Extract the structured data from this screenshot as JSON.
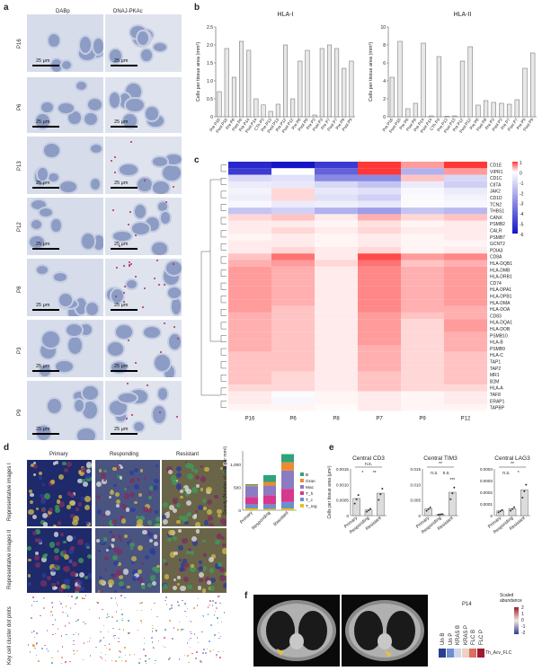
{
  "panels": {
    "a": {
      "letter": "a",
      "col_titles": [
        "DABp",
        "DNAJ-PKAc"
      ],
      "rows": [
        "P16",
        "P6",
        "P13",
        "P12",
        "P8",
        "P3",
        "P9"
      ],
      "scale_label": "25 μm"
    },
    "b": {
      "letter": "b",
      "ylabel": "Cells per tissue area (mm²)",
      "charts": [
        {
          "type": "bar",
          "title": "HLA-I",
          "ylim": [
            0,
            2.5
          ],
          "yticks": [
            "0",
            "0.5",
            "1.0",
            "1.5",
            "2.0",
            "2.5"
          ],
          "categories": [
            "Pre P16",
            "Post P16",
            "Pre P6",
            "Post P6",
            "Pre P14",
            "Post P14",
            "CTh P3",
            "Pre P13",
            "Post P13",
            "Pre P12",
            "Post P12",
            "Pre P8",
            "Post P8",
            "Pre P3",
            "Post P3",
            "Pre P7",
            "Post P7",
            "Pre P9",
            "Post P9"
          ],
          "values": [
            0.7,
            1.9,
            1.1,
            2.1,
            1.85,
            0.5,
            0.33,
            0.15,
            0.35,
            2.0,
            0.5,
            1.55,
            1.85,
            0.05,
            1.9,
            2.0,
            1.9,
            1.35,
            1.55
          ]
        },
        {
          "type": "bar",
          "title": "HLA-II",
          "ylim": [
            0,
            10
          ],
          "yticks": [
            "0",
            "2",
            "4",
            "6",
            "8",
            "10"
          ],
          "categories": [
            "Pre P16",
            "Post P16",
            "Pre P6",
            "Post P6",
            "Pre P14",
            "Post P14",
            "CTh P3",
            "Pre P13",
            "Post P13",
            "Pre P12",
            "Post P12",
            "Pre P8",
            "Post P8",
            "Pre P3",
            "Post P3",
            "Pre P7",
            "Post P7",
            "Pre P9",
            "Post P9"
          ],
          "values": [
            4.4,
            8.4,
            0.9,
            1.5,
            8.2,
            0.1,
            6.7,
            0.05,
            0.1,
            6.2,
            7.8,
            1.3,
            1.8,
            1.6,
            1.5,
            1.4,
            1.9,
            5.4,
            7.1
          ]
        }
      ]
    },
    "c": {
      "letter": "c",
      "genes": [
        "CD1E",
        "VIPR1",
        "CD1C",
        "CIITA",
        "JAK2",
        "CD1D",
        "TCN2",
        "THBS1",
        "CANX",
        "PSMB2",
        "CALR",
        "PSMB7",
        "GCNT2",
        "PDIA3",
        "CD8A",
        "HLA-DQB1",
        "HLA-DMB",
        "HLA-DRB1",
        "CD74",
        "HLA-DPA1",
        "HLA-DPB1",
        "HLA-DMA",
        "HLA-DOA",
        "CD83",
        "HLA-DQA1",
        "HLA-DOB",
        "PSMB10",
        "HLA-B",
        "PSMB9",
        "HLA-C",
        "TAP1",
        "TAP2",
        "MR1",
        "B2M",
        "HLA-A",
        "TAF8",
        "ERAP1",
        "TAPBP"
      ],
      "samples": [
        "P16",
        "P6",
        "P8",
        "P7",
        "P9",
        "P12"
      ],
      "colorbar_ticks": [
        "1",
        "0",
        "-1",
        "-2",
        "-3",
        "-4",
        "-5",
        "-6"
      ],
      "values": [
        [
          -5.5,
          -6,
          -5,
          1,
          0.5,
          1
        ],
        [
          -5,
          0,
          -4,
          1,
          -2,
          0.5
        ],
        [
          -1,
          -0.8,
          -3,
          -3,
          0.3,
          -1
        ],
        [
          -0.5,
          -0.6,
          -1,
          -1.5,
          -0.5,
          -1.2
        ],
        [
          -0.3,
          0.2,
          -0.6,
          -0.8,
          -0.2,
          -0.5
        ],
        [
          -0.4,
          0.2,
          -0.8,
          -1.2,
          -0.1,
          -0.3
        ],
        [
          -0.2,
          -0.5,
          -0.4,
          -0.6,
          -0.1,
          -0.2
        ],
        [
          -1.5,
          -1.2,
          -2,
          -2.5,
          -1.5,
          -1.8
        ],
        [
          0.2,
          0.3,
          0.1,
          0.4,
          0.2,
          0.3
        ],
        [
          0.1,
          0.1,
          0.05,
          0.15,
          0.05,
          0.1
        ],
        [
          0.1,
          0.2,
          0.1,
          0.2,
          0.1,
          0.1
        ],
        [
          0.05,
          0.1,
          0.05,
          0.1,
          0.05,
          0.1
        ],
        [
          0.1,
          0.1,
          0.05,
          0.1,
          0.05,
          0.05
        ],
        [
          0.1,
          0.2,
          0.1,
          0.2,
          0.05,
          0.1
        ],
        [
          0.3,
          0.7,
          0.1,
          0.9,
          0.5,
          0.6
        ],
        [
          0.4,
          0.5,
          0.2,
          0.7,
          0.3,
          0.4
        ],
        [
          0.5,
          0.4,
          0.1,
          0.6,
          0.4,
          0.5
        ],
        [
          0.5,
          0.4,
          0.1,
          0.6,
          0.4,
          0.5
        ],
        [
          0.5,
          0.4,
          0.1,
          0.6,
          0.4,
          0.5
        ],
        [
          0.5,
          0.4,
          0.1,
          0.6,
          0.4,
          0.5
        ],
        [
          0.5,
          0.4,
          0.1,
          0.6,
          0.4,
          0.5
        ],
        [
          0.5,
          0.4,
          0.1,
          0.6,
          0.4,
          0.5
        ],
        [
          0.5,
          0.3,
          0.1,
          0.6,
          0.4,
          0.4
        ],
        [
          0.4,
          0.3,
          0.1,
          0.5,
          0.3,
          0.4
        ],
        [
          0.4,
          0.3,
          0.1,
          0.5,
          0.2,
          0.5
        ],
        [
          0.4,
          0.3,
          0.1,
          0.5,
          0.2,
          0.5
        ],
        [
          0.4,
          0.3,
          0.1,
          0.5,
          0.2,
          0.4
        ],
        [
          0.4,
          0.3,
          0.1,
          0.5,
          0.2,
          0.4
        ],
        [
          0.4,
          0.3,
          0.1,
          0.4,
          0.2,
          0.4
        ],
        [
          0.3,
          0.3,
          0.1,
          0.4,
          0.2,
          0.3
        ],
        [
          0.3,
          0.3,
          0.1,
          0.4,
          0.2,
          0.3
        ],
        [
          0.3,
          0.3,
          0.1,
          0.4,
          0.2,
          0.3
        ],
        [
          0.3,
          0.2,
          0.1,
          0.3,
          0.2,
          0.3
        ],
        [
          0.3,
          0.2,
          0.1,
          0.3,
          0.2,
          0.3
        ],
        [
          0.2,
          0.2,
          0.1,
          0.3,
          0.2,
          0.2
        ],
        [
          0.1,
          -0.1,
          0.05,
          0.1,
          0.05,
          0.1
        ],
        [
          0.1,
          -0.2,
          0.05,
          0.1,
          0.05,
          0.1
        ],
        [
          0.05,
          0.05,
          0.02,
          0.1,
          0.05,
          0.05
        ]
      ]
    },
    "d": {
      "letter": "d",
      "col_titles": [
        "Primary",
        "Responding",
        "Resistant"
      ],
      "row_labels": [
        "Representative images I",
        "Representative images II",
        "Key cell cluster dot plots"
      ],
      "stacked": {
        "type": "bar",
        "ylabel": "Density (Number of cells per mm²)",
        "yticks": [
          "0",
          "500",
          "1,000"
        ],
        "ylim": [
          0,
          1300
        ],
        "categories": [
          "Primary",
          "Responding",
          "Resistant"
        ],
        "series": [
          {
            "name": "T_reg",
            "color": "#e5c11a",
            "values": [
              40,
              30,
              40
            ]
          },
          {
            "name": "T_c",
            "color": "#6a8fd0",
            "values": [
              90,
              100,
              140
            ]
          },
          {
            "name": "T_h",
            "color": "#d6388e",
            "values": [
              160,
              200,
              290
            ]
          },
          {
            "name": "Mac",
            "color": "#8a7bc2",
            "values": [
              240,
              210,
              400
            ]
          },
          {
            "name": "Gran",
            "color": "#ef8a2e",
            "values": [
              20,
              80,
              180
            ]
          },
          {
            "name": "B",
            "color": "#2fa37a",
            "values": [
              20,
              150,
              180
            ]
          }
        ],
        "legend": [
          "B",
          "Gran",
          "Mac",
          "T_h",
          "T_c",
          "T_reg"
        ]
      }
    },
    "e": {
      "letter": "e",
      "ylabel": "Cells per tissue area (μm²)",
      "categories": [
        "Primary",
        "Responding",
        "Resistant"
      ],
      "charts": [
        {
          "type": "bar",
          "title": "Central CD3",
          "yticks": [
            "0",
            "0.0005",
            "0.0010",
            "0.0015"
          ],
          "ylim": [
            0,
            0.0015
          ],
          "values": [
            0.00055,
            0.00018,
            0.00072
          ],
          "sig": [
            "n.s.",
            "*",
            "**"
          ]
        },
        {
          "type": "bar",
          "title": "Central TIM3",
          "yticks": [
            "0",
            "0.005",
            "0.010",
            "0.015"
          ],
          "ylim": [
            0,
            0.015
          ],
          "values": [
            0.0022,
            0.0004,
            0.0075
          ],
          "sig": [
            "**",
            "n.s.",
            "n.s.",
            "***"
          ]
        },
        {
          "type": "bar",
          "title": "Central LAG3",
          "yticks": [
            "0",
            "0.0001",
            "0.0002",
            "0.0003",
            "0.0004"
          ],
          "ylim": [
            0,
            0.0004
          ],
          "values": [
            4e-05,
            6e-05,
            0.00022
          ],
          "sig": [
            "**",
            "n.s.",
            "*"
          ]
        }
      ]
    },
    "f": {
      "letter": "f",
      "patient": "P14",
      "heat_labels": [
        "Un B",
        "Un P",
        "KRAS B",
        "KRAS P",
        "FLC B",
        "FLC P"
      ],
      "heat_colors": [
        "#2b3d8f",
        "#6f8fcf",
        "#cfd8ea",
        "#eed0c4",
        "#d97060",
        "#a01a30"
      ],
      "row_label": "Th_Acv_FLC",
      "scale_title": "Scaled abundance",
      "scale_ticks": [
        "2",
        "1",
        "0",
        "-1",
        "-2"
      ]
    }
  }
}
